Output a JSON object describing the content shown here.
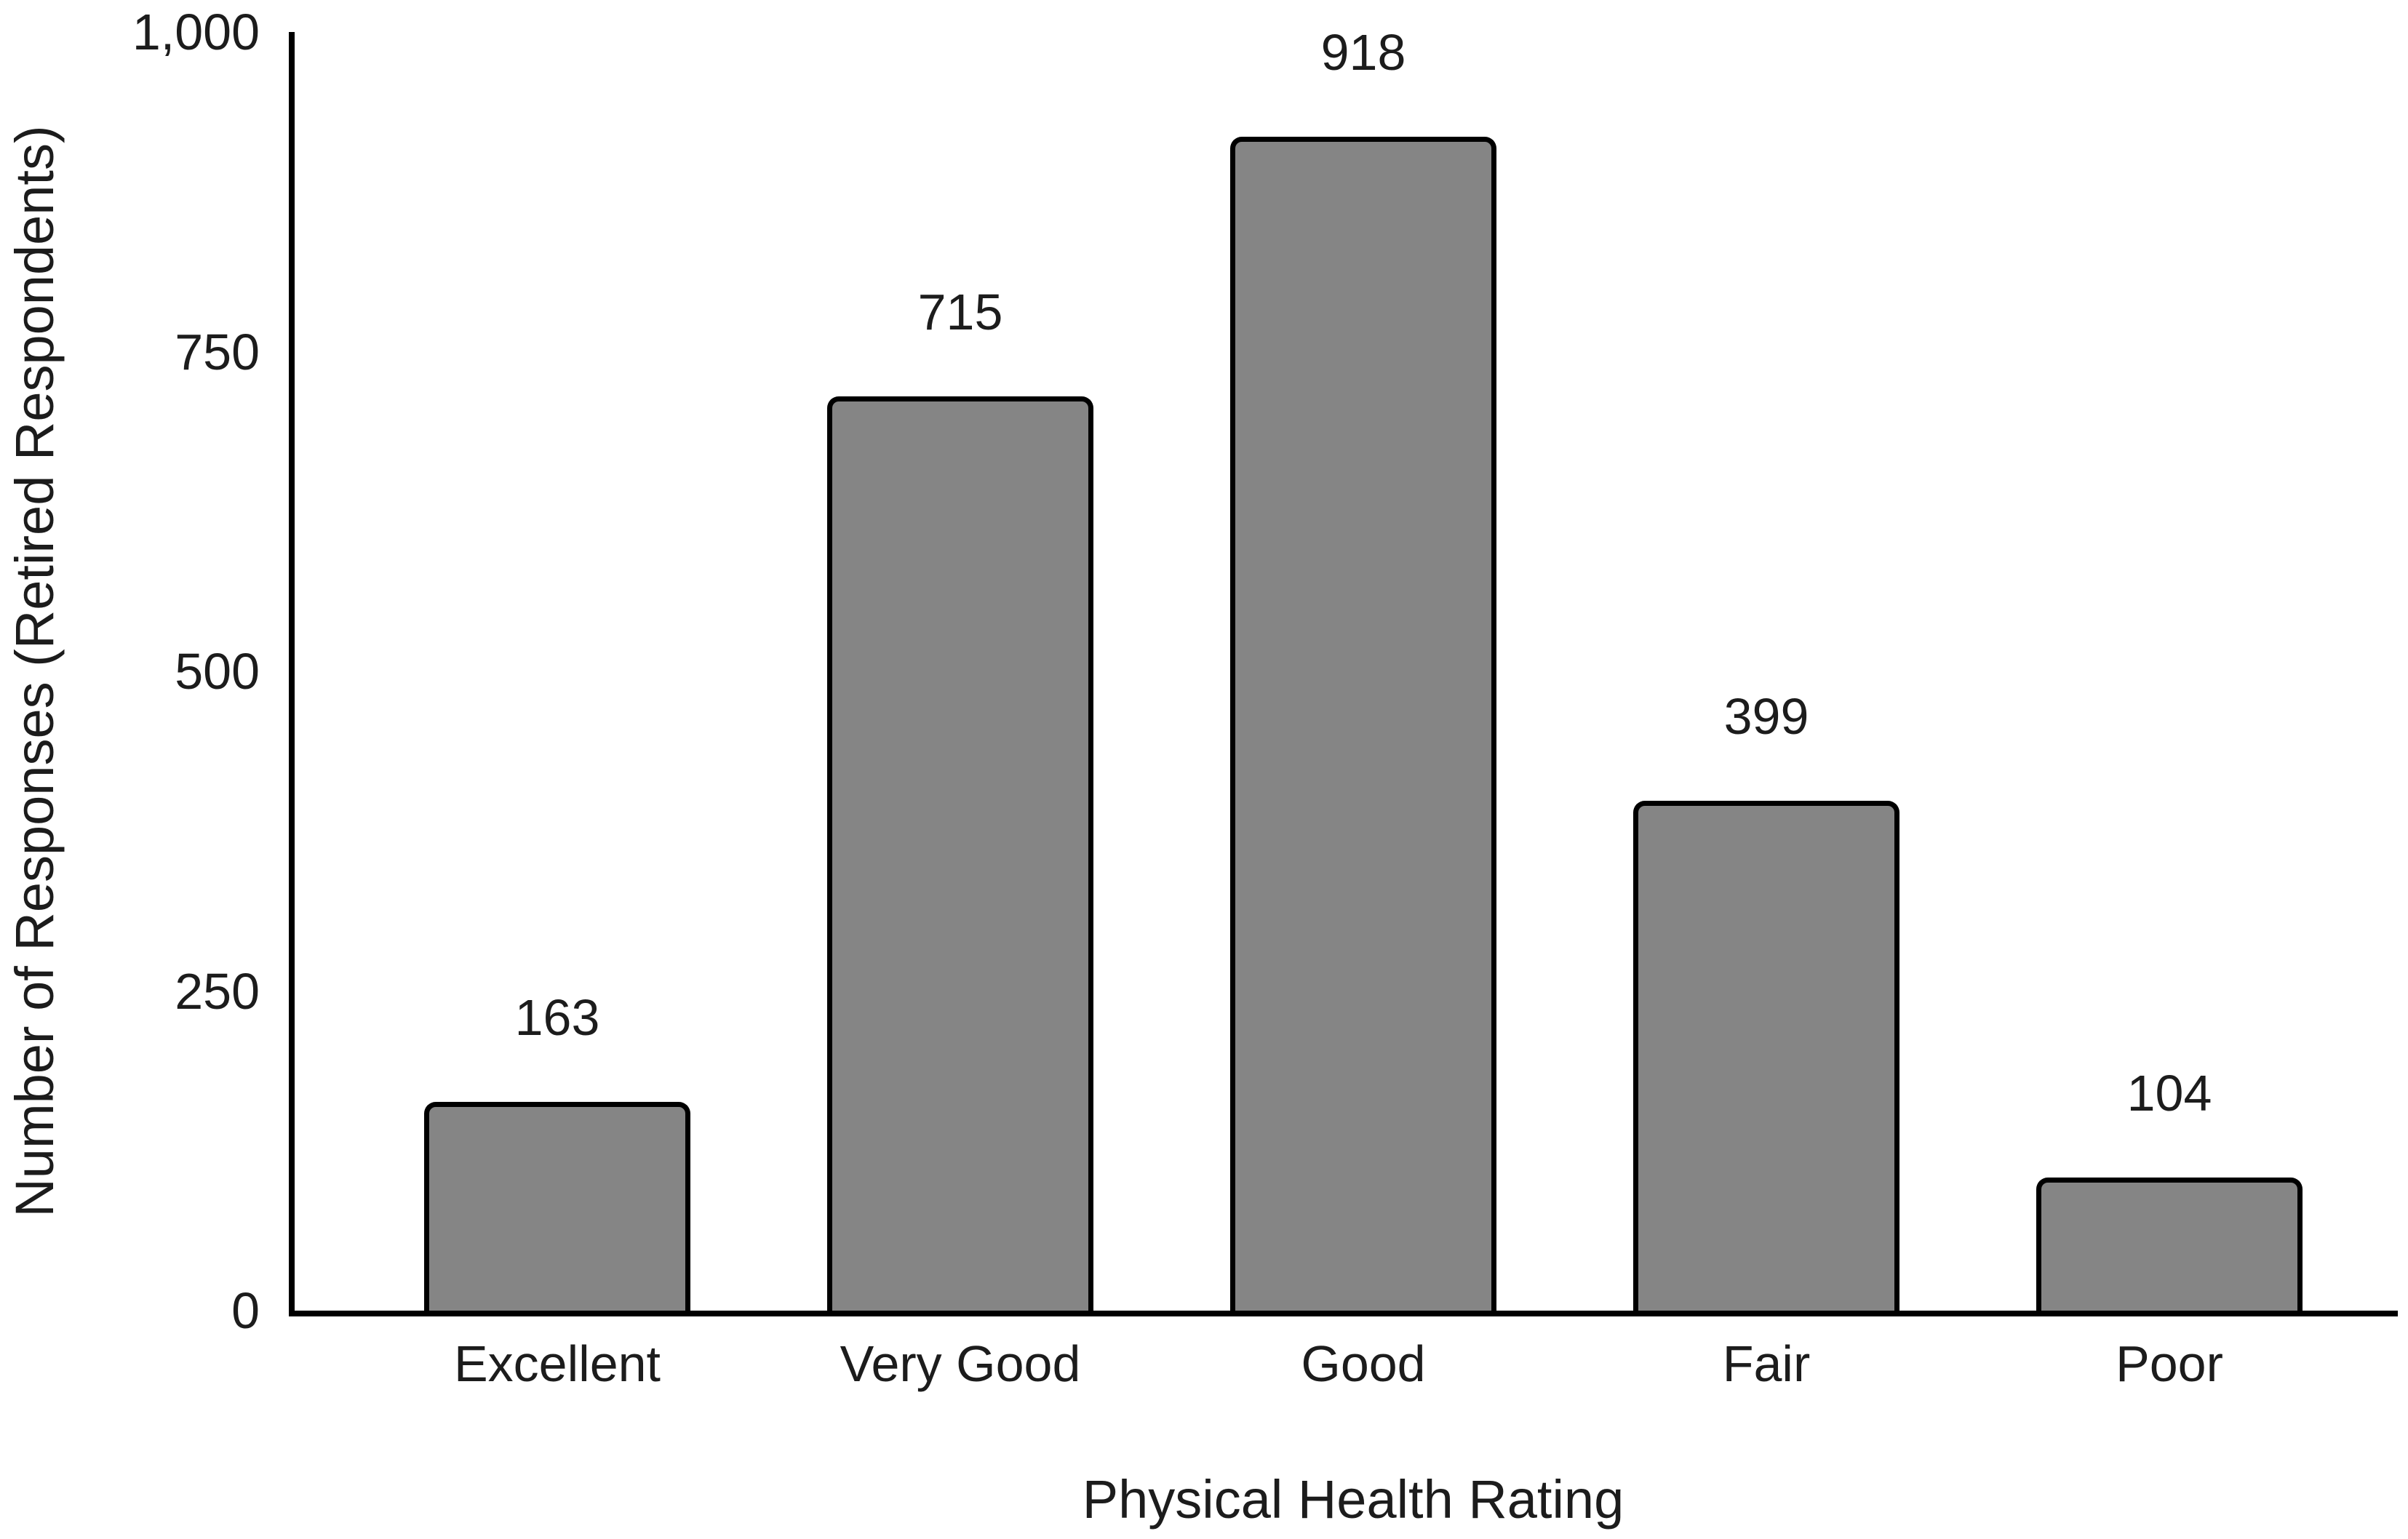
{
  "chart_data": {
    "type": "bar",
    "title": "",
    "categories": [
      "Excellent",
      "Very Good",
      "Good",
      "Fair",
      "Poor"
    ],
    "values": [
      163,
      715,
      918,
      399,
      104
    ],
    "bar_labels": [
      "163",
      "715",
      "918",
      "399",
      "104"
    ],
    "xlabel": "Physical Health Rating",
    "ylabel": "Number of Responses (Retired Respondents)",
    "ylim": [
      0,
      1000
    ],
    "yticks": [
      {
        "value": 0,
        "label": "0"
      },
      {
        "value": 250,
        "label": "250"
      },
      {
        "value": 500,
        "label": "500"
      },
      {
        "value": 750,
        "label": "750"
      },
      {
        "value": 1000,
        "label": "1,000"
      }
    ],
    "grid": false,
    "legend_position": "none",
    "colors": {
      "bar_fill": "#858585",
      "bar_border": "#000000",
      "axis": "#000000",
      "text": "#1c1c1c",
      "background": "#ffffff"
    }
  }
}
